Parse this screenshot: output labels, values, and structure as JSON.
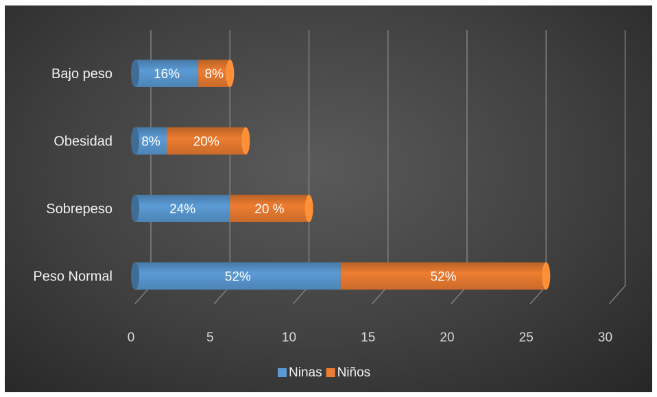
{
  "chart_data": {
    "type": "bar",
    "orientation": "horizontal",
    "stacked": true,
    "style": "3d-cylinder",
    "categories": [
      "Bajo peso",
      "Obesidad",
      "Sobrepeso",
      "Peso Normal"
    ],
    "series": [
      {
        "name": "Ninas",
        "color": "#5b9bd5",
        "values": [
          4,
          2,
          6,
          13
        ],
        "labels": [
          "16%",
          "8%",
          "24%",
          "52%"
        ]
      },
      {
        "name": "Niños",
        "color": "#ed7d31",
        "values": [
          2,
          5,
          5,
          13
        ],
        "labels": [
          "8%",
          "20%",
          "20 %",
          "52%"
        ]
      }
    ],
    "xlim": [
      0,
      30
    ],
    "xticks": [
      "0",
      "5",
      "10",
      "15",
      "20",
      "25",
      "30"
    ],
    "grid": true,
    "legend": "bottom"
  }
}
